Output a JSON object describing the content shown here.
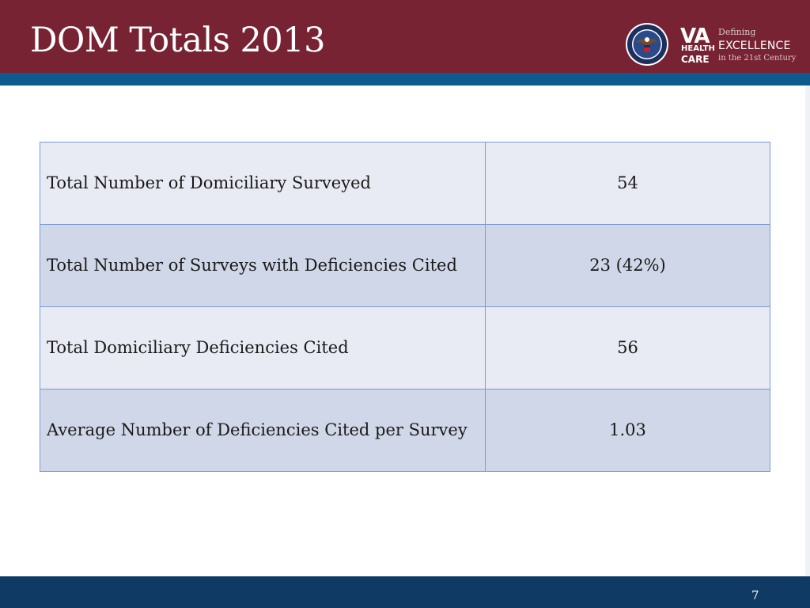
{
  "slide": {
    "title": "DOM Totals 2013",
    "page_number": "7"
  },
  "logo": {
    "va": "VA",
    "health": "HEALTH",
    "care": "CARE",
    "defining": "Defining",
    "excellence": "EXCELLENCE",
    "century": "in the 21st Century"
  },
  "table": {
    "rows": [
      {
        "label": "Total Number of Domiciliary Surveyed",
        "value": "54"
      },
      {
        "label": "Total Number of Surveys with Deficiencies Cited",
        "value": "23 (42%)"
      },
      {
        "label": "Total Domiciliary Deficiencies Cited",
        "value": "56"
      },
      {
        "label": "Average Number of Deficiencies Cited  per Survey",
        "value": "1.03"
      }
    ]
  },
  "colors": {
    "header": "#772333",
    "header_stripe": "#0d5a8f",
    "footer": "#0f3a63",
    "row_light": "#e8ebf4",
    "row_dark": "#d0d7e8",
    "table_border": "#7a9ad6"
  }
}
